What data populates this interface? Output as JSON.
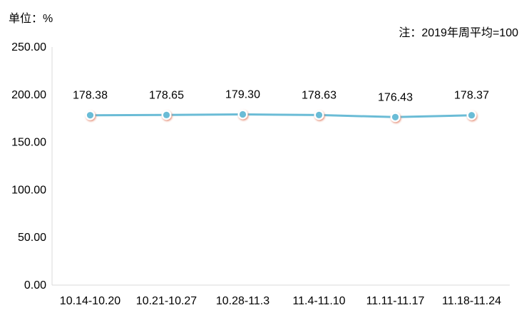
{
  "unit_label": "单位：%",
  "note": "注：2019年周平均=100",
  "colors": {
    "line": "#6bbcd6",
    "marker_fill": "#6bbcd6",
    "marker_ring": "#ffffff",
    "marker_shadow": "#e07a5f",
    "axis": "#d9d9d9"
  },
  "chart_data": {
    "type": "line",
    "title": "",
    "xlabel": "",
    "ylabel": "",
    "categories": [
      "10.14-10.20",
      "10.21-10.27",
      "10.28-11.3",
      "11.4-11.10",
      "11.11-11.17",
      "11.18-11.24"
    ],
    "series": [
      {
        "values": [
          178.38,
          178.65,
          179.3,
          178.63,
          176.43,
          178.37
        ]
      }
    ],
    "data_labels": [
      "178.38",
      "178.65",
      "179.30",
      "178.63",
      "176.43",
      "178.37"
    ],
    "yticks": [
      "0.00",
      "50.00",
      "100.00",
      "150.00",
      "200.00",
      "250.00"
    ],
    "ylim": [
      0,
      250
    ],
    "grid": false,
    "legend": "none"
  }
}
